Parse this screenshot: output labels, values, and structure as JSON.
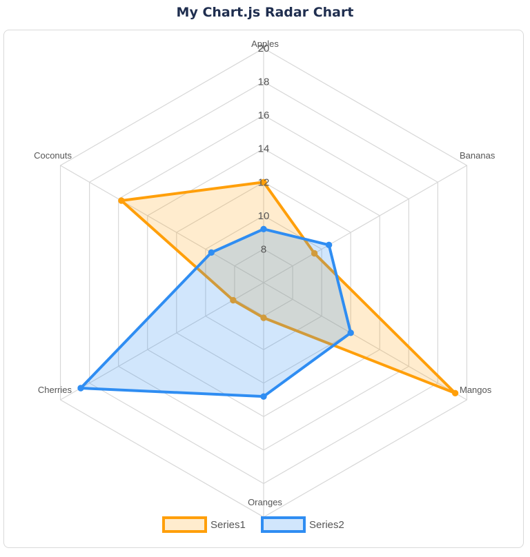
{
  "chart_data": {
    "type": "radar",
    "title": "My Chart.js Radar Chart",
    "labels": [
      "Apples",
      "Bananas",
      "Mangos",
      "Oranges",
      "Cherries",
      "Coconuts"
    ],
    "scale": {
      "min": 6,
      "max": 20,
      "tick_values": [
        8,
        10,
        12,
        14,
        16,
        18,
        20
      ],
      "grid_levels": [
        6,
        8,
        10,
        12,
        14,
        16,
        18,
        20
      ]
    },
    "series": [
      {
        "name": "Series1",
        "values": [
          12,
          9.5,
          19.2,
          8.1,
          8.1,
          15.8
        ],
        "border_color": "#ff9f0a",
        "fill_color": "rgba(255, 159, 10, 0.20)"
      },
      {
        "name": "Series2",
        "values": [
          9.2,
          10.5,
          12.0,
          12.8,
          18.6,
          9.6
        ],
        "border_color": "#2f8df2",
        "fill_color": "rgba(47, 141, 242, 0.22)"
      }
    ],
    "legend_position": "bottom",
    "grid": true
  },
  "colors": {
    "grid": "#d7d7d7",
    "text": "#555555",
    "title": "#1f2e4f"
  }
}
